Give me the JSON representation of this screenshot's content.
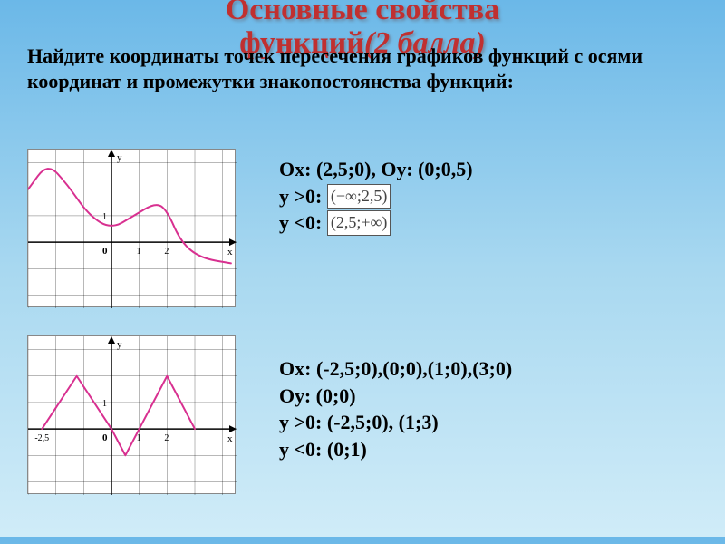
{
  "title_line1": "Основные свойства",
  "title_line2": "функций",
  "title_score": "(2 балла)",
  "prompt": "Найдите координаты точек пересечения графиков функций с осями координат и промежутки знакопостоянства функций:",
  "ans1": {
    "ox_oy": "Ох: (2,5;0),   Оу: (0;0,5)",
    "ypos_label": "у >0:",
    "ypos_interval": "(−∞;2,5)",
    "yneg_label": "у <0:",
    "yneg_interval": "(2,5;+∞)"
  },
  "ans2": {
    "ox": "Ох: (-2,5;0),(0;0),(1;0),(3;0)",
    "oy": "Оу: (0;0)",
    "ypos": "у >0: (-2,5;0), (1;3)",
    "yneg": "у <0: (0;1)"
  },
  "chart1": {
    "type": "line",
    "background": "#ffffff",
    "grid_color": "#000000",
    "curve_color": "#d83090",
    "curve_width": 2,
    "axis_color": "#000000",
    "xlabel": "x",
    "ylabel": "y",
    "origin_label": "0",
    "xticks": [
      1,
      2
    ],
    "yticks": [
      1
    ],
    "xlim": [
      -3,
      4.5
    ],
    "ylim": [
      -2.5,
      3.5
    ],
    "points": [
      [
        -3.0,
        2.0
      ],
      [
        -2.3,
        3.0
      ],
      [
        -1.6,
        2.2
      ],
      [
        -0.8,
        1.0
      ],
      [
        0,
        0.5
      ],
      [
        0.8,
        1.0
      ],
      [
        1.6,
        1.5
      ],
      [
        2.0,
        1.2
      ],
      [
        2.5,
        0
      ],
      [
        3.2,
        -0.6
      ],
      [
        4.3,
        -0.8
      ]
    ]
  },
  "chart2": {
    "type": "line",
    "background": "#ffffff",
    "grid_color": "#000000",
    "curve_color": "#d83090",
    "curve_width": 2,
    "axis_color": "#000000",
    "xlabel": "x",
    "ylabel": "y",
    "origin_label": "0",
    "xticks": [
      1,
      2
    ],
    "yticks": [
      1
    ],
    "xlim": [
      -3,
      4.5
    ],
    "ylim": [
      -2.5,
      3.5
    ],
    "x_left_label": "-2,5",
    "points": [
      [
        -2.5,
        0
      ],
      [
        -1.25,
        2.0
      ],
      [
        0,
        0
      ],
      [
        0.5,
        -1.0
      ],
      [
        1,
        0
      ],
      [
        2,
        2.0
      ],
      [
        3,
        0
      ]
    ]
  }
}
